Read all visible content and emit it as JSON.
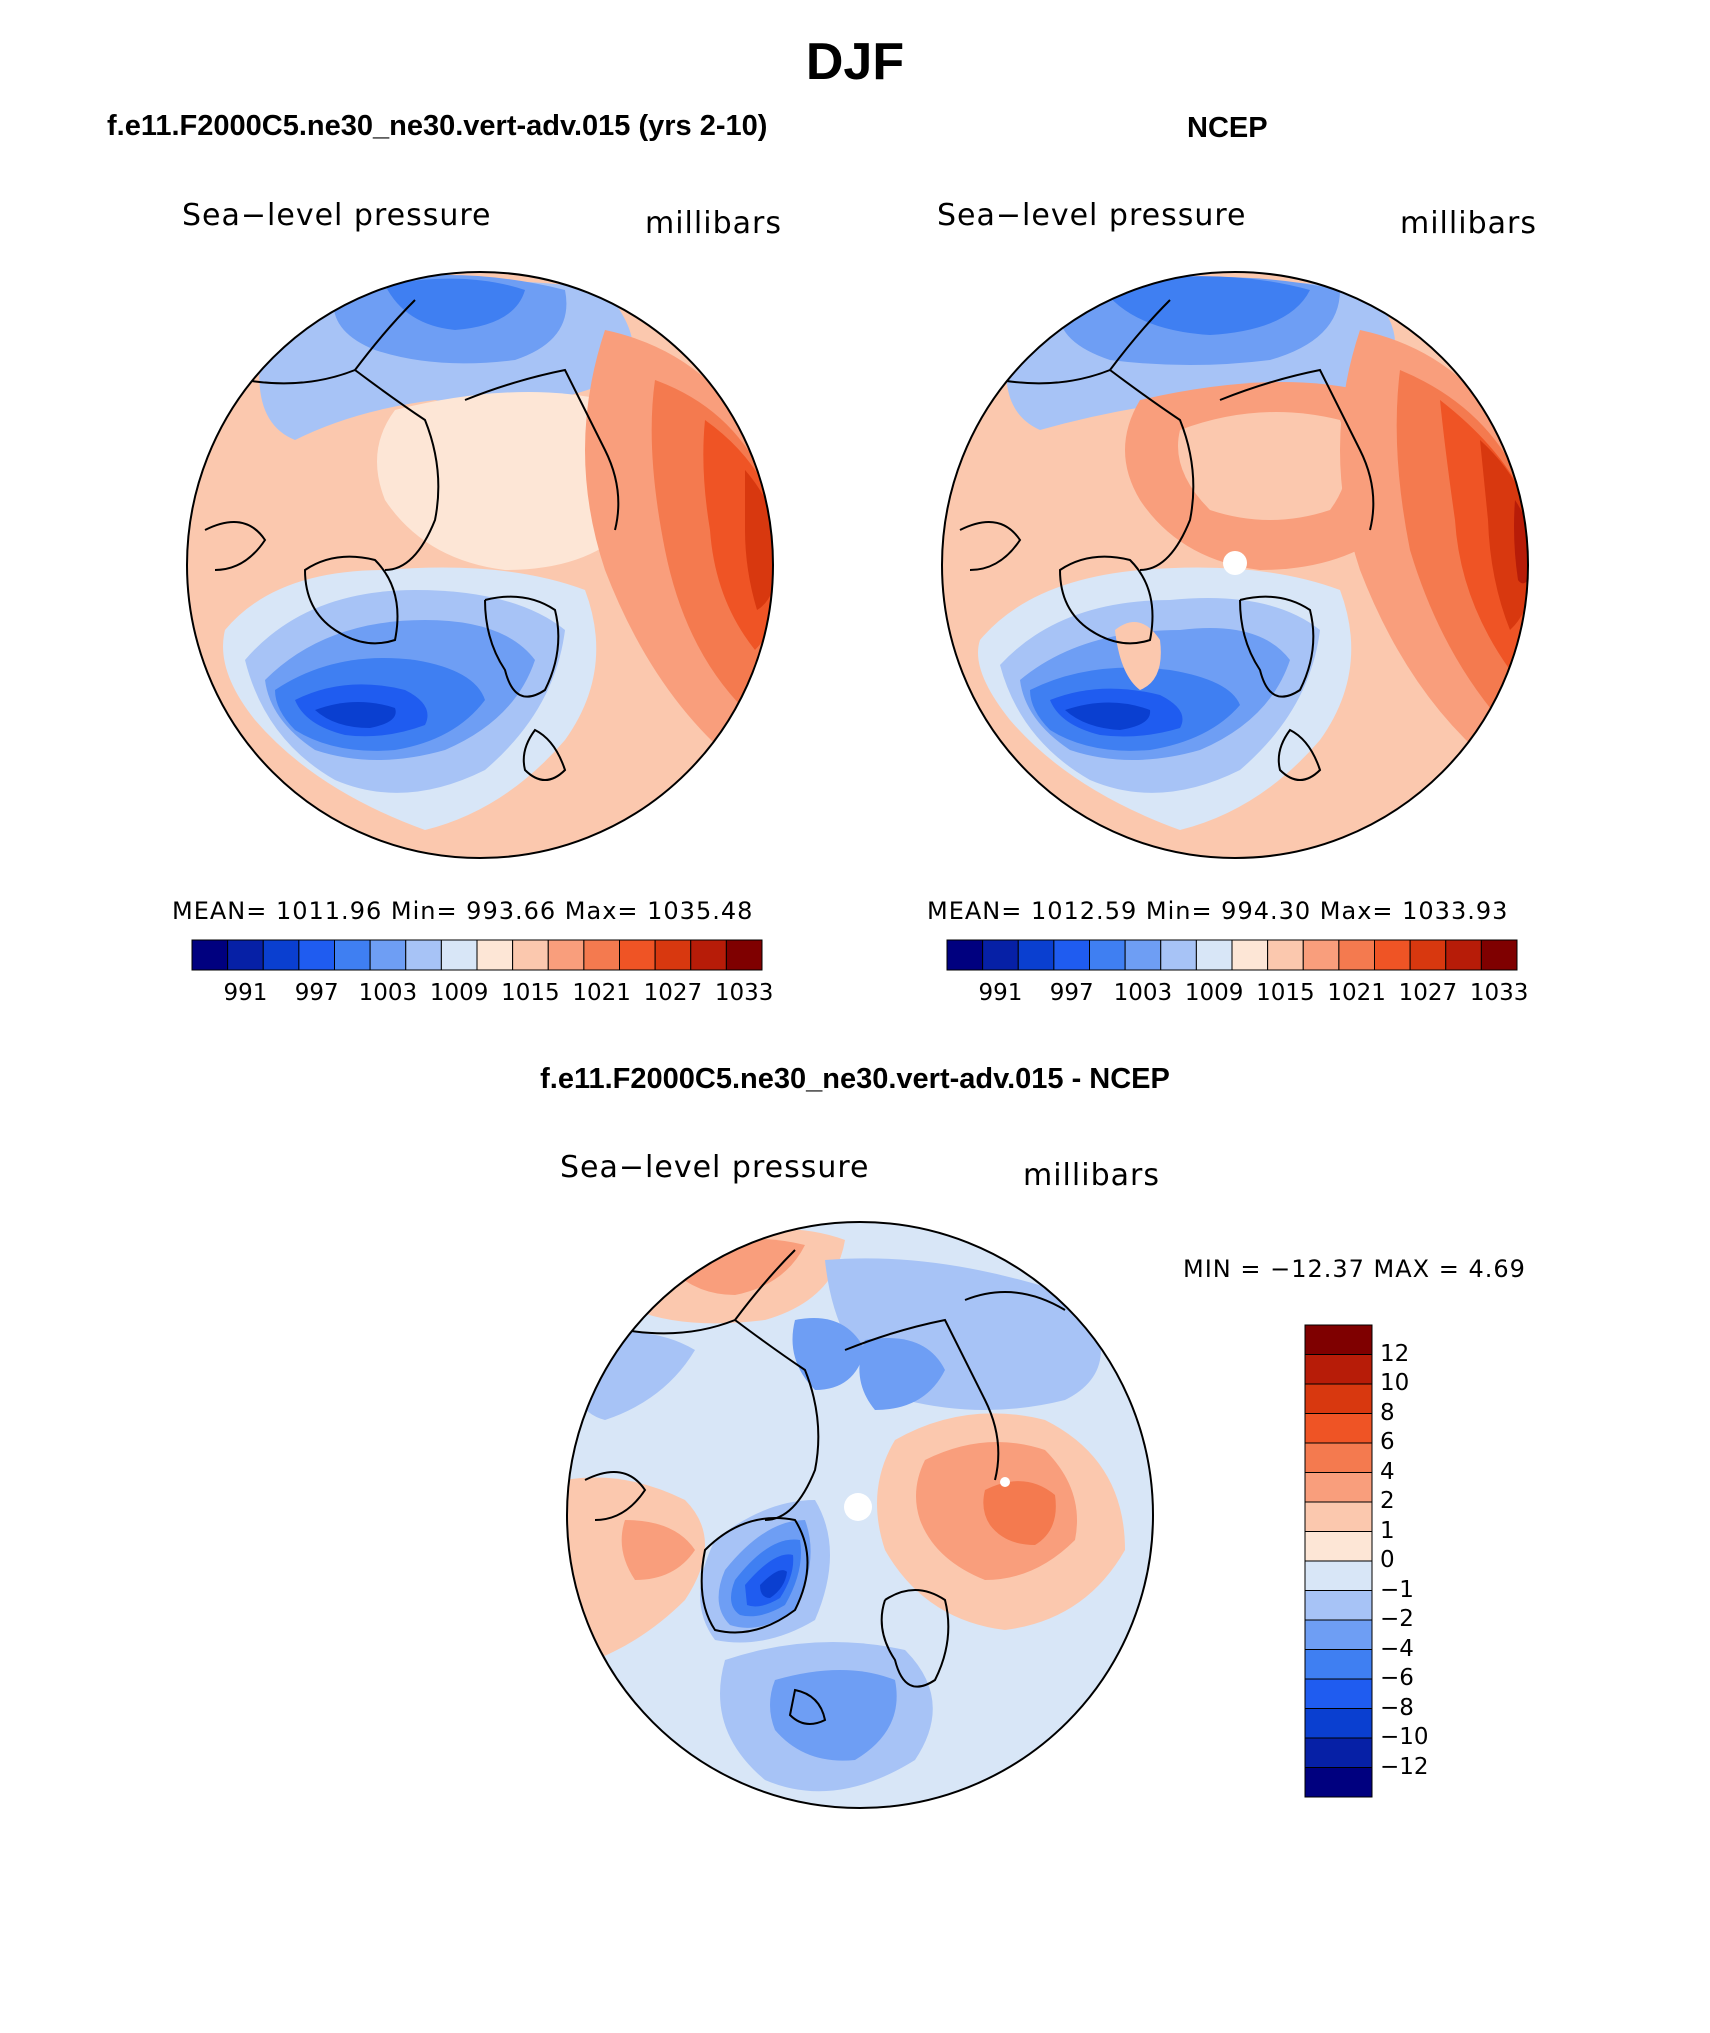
{
  "title": "DJF",
  "panels": [
    {
      "case": "f.e11.F2000C5.ne30_ne30.vert-adv.015 (yrs 2-10)",
      "variable": "Sea−level pressure",
      "units": "millibars",
      "stats": "MEAN=  1011.96   Min=  993.66   Max=  1035.48"
    },
    {
      "case": "NCEP",
      "variable": "Sea−level pressure",
      "units": "millibars",
      "stats": "MEAN=  1012.59   Min=  994.30   Max=  1033.93"
    },
    {
      "case": "f.e11.F2000C5.ne30_ne30.vert-adv.015 - NCEP",
      "variable": "Sea−level pressure",
      "units": "millibars",
      "stats": "MIN  =  −12.37  MAX  =      4.69"
    }
  ],
  "colorbar_abs": {
    "labels": [
      "991",
      "997",
      "1003",
      "1009",
      "1015",
      "1021",
      "1027",
      "1033"
    ],
    "colors": [
      "#00007f",
      "#0620a6",
      "#0a3fd0",
      "#1f5cf0",
      "#3f7ff2",
      "#6e9ef4",
      "#a7c3f6",
      "#d8e6f7",
      "#fde6d6",
      "#fbc8ae",
      "#f99e7c",
      "#f47a4f",
      "#ef5425",
      "#d8380f",
      "#b71c08",
      "#7f0000"
    ]
  },
  "colorbar_diff": {
    "labels": [
      "12",
      "10",
      "8",
      "6",
      "4",
      "2",
      "1",
      "0",
      "−1",
      "−2",
      "−4",
      "−6",
      "−8",
      "−10",
      "−12"
    ],
    "colors": [
      "#7f0000",
      "#b71c08",
      "#d8380f",
      "#ef5425",
      "#f47a4f",
      "#f99e7c",
      "#fbc8ae",
      "#fde6d6",
      "#d8e6f7",
      "#a7c3f6",
      "#6e9ef4",
      "#3f7ff2",
      "#1f5cf0",
      "#0a3fd0",
      "#0620a6",
      "#00007f"
    ]
  }
}
